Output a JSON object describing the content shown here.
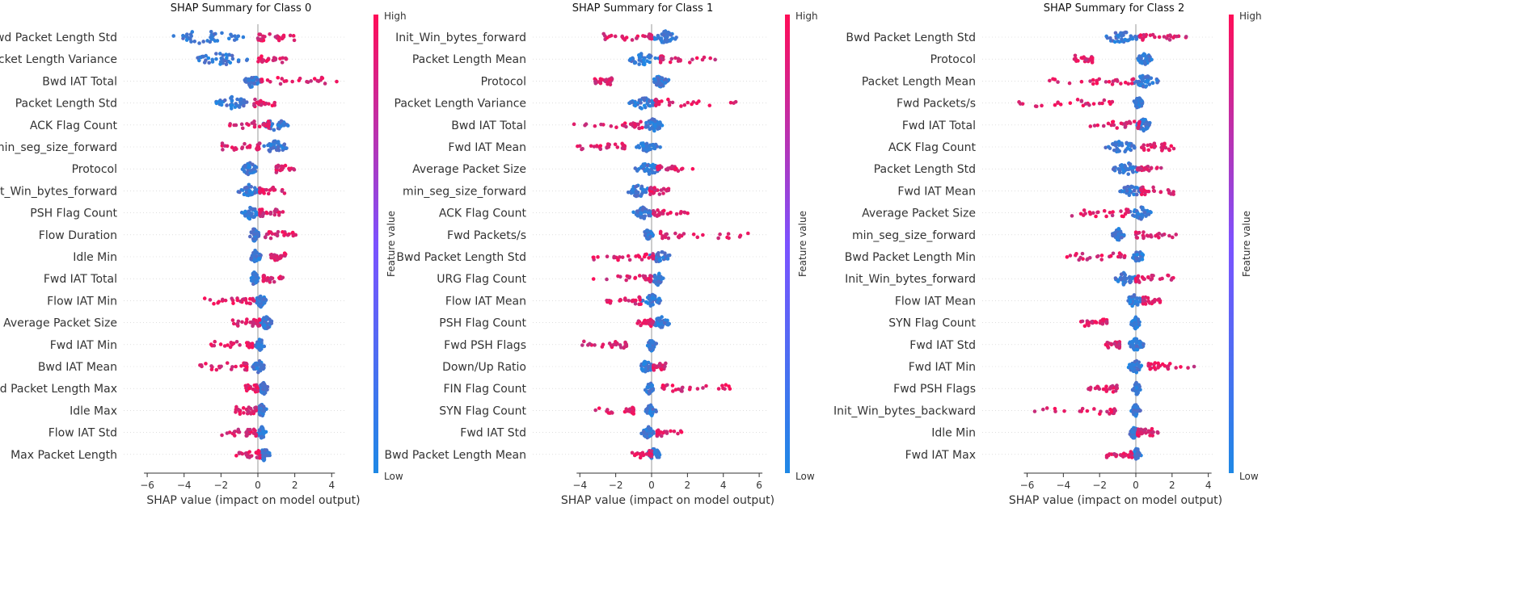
{
  "colors": {
    "low": "#1e88e5",
    "high": "#ff0d57",
    "zero_line": "#999999",
    "axis": "#333333"
  },
  "colorbar": {
    "high_label": "High",
    "low_label": "Low",
    "title": "Feature value"
  },
  "chart_data": [
    {
      "type": "scatter",
      "subtype": "shap-beeswarm",
      "title": "SHAP Summary for Class 0",
      "xlabel": "SHAP value (impact on model output)",
      "ylabel": "",
      "xlim": [
        -6.3,
        4.7
      ],
      "xticks": [
        -6,
        -4,
        -2,
        0,
        2,
        4
      ],
      "features": [
        {
          "name": "Bwd Packet Length Std",
          "pos": [
            0,
            2.3
          ],
          "neg": [
            -5.8,
            -0.2
          ]
        },
        {
          "name": "Packet Length Variance",
          "pos": [
            0,
            1.6
          ],
          "neg": [
            -3.7,
            -0.2
          ]
        },
        {
          "name": "Bwd IAT Total",
          "pos": [
            0.2,
            4.4
          ],
          "neg": [
            -0.9,
            0.2
          ]
        },
        {
          "name": "Packet Length Std",
          "pos": [
            -0.2,
            1.0
          ],
          "neg": [
            -2.4,
            -0.3
          ]
        },
        {
          "name": "ACK Flag Count",
          "pos": [
            -1.6,
            0.6
          ],
          "neg": [
            0.2,
            1.7
          ]
        },
        {
          "name": "min_seg_size_forward",
          "pos": [
            -2.0,
            0.1
          ],
          "neg": [
            0.1,
            1.8
          ]
        },
        {
          "name": "Protocol",
          "pos": [
            1.0,
            2.0
          ],
          "neg": [
            -0.9,
            0.0
          ]
        },
        {
          "name": "Init_Win_bytes_forward",
          "pos": [
            0.1,
            1.5
          ],
          "neg": [
            -1.1,
            0.1
          ]
        },
        {
          "name": "PSH Flag Count",
          "pos": [
            0.1,
            1.5
          ],
          "neg": [
            -0.9,
            0.1
          ]
        },
        {
          "name": "Flow Duration",
          "pos": [
            0.4,
            2.1
          ],
          "neg": [
            -0.5,
            0.1
          ]
        },
        {
          "name": "Idle Min",
          "pos": [
            0.7,
            1.5
          ],
          "neg": [
            -0.5,
            0.2
          ]
        },
        {
          "name": "Fwd IAT Total",
          "pos": [
            0.3,
            1.4
          ],
          "neg": [
            -0.5,
            0.1
          ]
        },
        {
          "name": "Flow IAT Min",
          "pos": [
            -2.9,
            -0.2
          ],
          "neg": [
            -0.2,
            0.5
          ]
        },
        {
          "name": "Average Packet Size",
          "pos": [
            -1.5,
            0.1
          ],
          "neg": [
            0.0,
            0.9
          ]
        },
        {
          "name": "Fwd IAT Min",
          "pos": [
            -2.9,
            -0.3
          ],
          "neg": [
            -0.2,
            0.4
          ]
        },
        {
          "name": "Bwd IAT Mean",
          "pos": [
            -3.3,
            -0.6
          ],
          "neg": [
            -0.3,
            0.4
          ]
        },
        {
          "name": "Bwd Packet Length Max",
          "pos": [
            -0.9,
            0.0
          ],
          "neg": [
            0.0,
            0.6
          ]
        },
        {
          "name": "Idle Max",
          "pos": [
            -1.3,
            -0.1
          ],
          "neg": [
            -0.1,
            0.5
          ]
        },
        {
          "name": "Flow IAT Std",
          "pos": [
            -2.0,
            -0.1
          ],
          "neg": [
            -0.1,
            0.5
          ]
        },
        {
          "name": "Max Packet Length",
          "pos": [
            -1.2,
            0.1
          ],
          "neg": [
            0.0,
            0.7
          ]
        }
      ]
    },
    {
      "type": "scatter",
      "subtype": "shap-beeswarm",
      "title": "SHAP Summary for Class 1",
      "xlabel": "SHAP value (impact on model output)",
      "ylabel": "",
      "xlim": [
        -5.5,
        6.4
      ],
      "xticks": [
        -4,
        -2,
        0,
        2,
        4,
        6
      ],
      "features": [
        {
          "name": "Init_Win_bytes_forward",
          "pos": [
            -2.7,
            0.0
          ],
          "neg": [
            0.0,
            1.5
          ]
        },
        {
          "name": "Packet Length Mean",
          "pos": [
            0.5,
            3.6
          ],
          "neg": [
            -1.5,
            0.5
          ]
        },
        {
          "name": "Protocol",
          "pos": [
            -3.3,
            -2.2
          ],
          "neg": [
            0.0,
            1.0
          ]
        },
        {
          "name": "Packet Length Variance",
          "pos": [
            0.2,
            5.0
          ],
          "neg": [
            -1.3,
            0.3
          ]
        },
        {
          "name": "Bwd IAT Total",
          "pos": [
            -4.5,
            -0.5
          ],
          "neg": [
            -0.5,
            0.7
          ]
        },
        {
          "name": "Fwd IAT Mean",
          "pos": [
            -4.2,
            -1.5
          ],
          "neg": [
            -1.0,
            0.5
          ]
        },
        {
          "name": "Average Packet Size",
          "pos": [
            0.3,
            2.3
          ],
          "neg": [
            -1.0,
            0.6
          ]
        },
        {
          "name": "min_seg_size_forward",
          "pos": [
            -0.1,
            1.0
          ],
          "neg": [
            -1.5,
            0.0
          ]
        },
        {
          "name": "ACK Flag Count",
          "pos": [
            0.1,
            2.1
          ],
          "neg": [
            -1.1,
            0.2
          ]
        },
        {
          "name": "Fwd Packets/s",
          "pos": [
            0.5,
            5.5
          ],
          "neg": [
            -0.5,
            0.1
          ]
        },
        {
          "name": "Bwd Packet Length Std",
          "pos": [
            -3.4,
            0.1
          ],
          "neg": [
            -0.2,
            1.1
          ]
        },
        {
          "name": "URG Flag Count",
          "pos": [
            -3.3,
            0.0
          ],
          "neg": [
            0.0,
            0.7
          ]
        },
        {
          "name": "Flow IAT Mean",
          "pos": [
            -2.6,
            -0.6
          ],
          "neg": [
            -0.6,
            0.6
          ]
        },
        {
          "name": "PSH Flag Count",
          "pos": [
            -0.8,
            0.1
          ],
          "neg": [
            0.0,
            1.1
          ]
        },
        {
          "name": "Fwd PSH Flags",
          "pos": [
            -4.2,
            -1.4
          ],
          "neg": [
            -0.3,
            0.3
          ]
        },
        {
          "name": "Down/Up Ratio",
          "pos": [
            0.1,
            1.0
          ],
          "neg": [
            -0.8,
            0.2
          ]
        },
        {
          "name": "FIN Flag Count",
          "pos": [
            0.6,
            4.5
          ],
          "neg": [
            -0.4,
            0.2
          ]
        },
        {
          "name": "SYN Flag Count",
          "pos": [
            -3.3,
            -1.0
          ],
          "neg": [
            -0.4,
            0.3
          ]
        },
        {
          "name": "Fwd IAT Std",
          "pos": [
            0.3,
            1.7
          ],
          "neg": [
            -0.6,
            0.2
          ]
        },
        {
          "name": "Bwd Packet Length Mean",
          "pos": [
            -1.2,
            0.0
          ],
          "neg": [
            -0.3,
            0.6
          ]
        }
      ]
    },
    {
      "type": "scatter",
      "subtype": "shap-beeswarm",
      "title": "SHAP Summary for Class 2",
      "xlabel": "SHAP value (impact on model output)",
      "ylabel": "",
      "xlim": [
        -7.0,
        4.6
      ],
      "xticks": [
        -6,
        -4,
        -2,
        0,
        2,
        4
      ],
      "features": [
        {
          "name": "Bwd Packet Length Std",
          "pos": [
            0.2,
            2.8
          ],
          "neg": [
            -2.1,
            0.3
          ]
        },
        {
          "name": "Protocol",
          "pos": [
            -3.4,
            -2.4
          ],
          "neg": [
            0.0,
            1.0
          ]
        },
        {
          "name": "Packet Length Mean",
          "pos": [
            -4.9,
            -0.1
          ],
          "neg": [
            -0.3,
            1.3
          ]
        },
        {
          "name": "Fwd Packets/s",
          "pos": [
            -6.5,
            -1.3
          ],
          "neg": [
            -0.2,
            0.5
          ]
        },
        {
          "name": "Fwd IAT Total",
          "pos": [
            -3.2,
            0.2
          ],
          "neg": [
            0.0,
            0.9
          ]
        },
        {
          "name": "ACK Flag Count",
          "pos": [
            0.3,
            2.2
          ],
          "neg": [
            -1.8,
            0.2
          ]
        },
        {
          "name": "Packet Length Std",
          "pos": [
            0.1,
            1.4
          ],
          "neg": [
            -1.3,
            0.3
          ]
        },
        {
          "name": "Fwd IAT Mean",
          "pos": [
            0.3,
            2.1
          ],
          "neg": [
            -0.9,
            0.4
          ]
        },
        {
          "name": "Average Packet Size",
          "pos": [
            -3.6,
            -0.4
          ],
          "neg": [
            -0.4,
            1.0
          ]
        },
        {
          "name": "min_seg_size_forward",
          "pos": [
            0.0,
            2.6
          ],
          "neg": [
            -1.3,
            -0.6
          ]
        },
        {
          "name": "Bwd Packet Length Min",
          "pos": [
            -3.8,
            -0.6
          ],
          "neg": [
            -0.2,
            0.5
          ]
        },
        {
          "name": "Init_Win_bytes_forward",
          "pos": [
            0.0,
            2.1
          ],
          "neg": [
            -1.3,
            0.1
          ]
        },
        {
          "name": "Flow IAT Mean",
          "pos": [
            0.4,
            1.4
          ],
          "neg": [
            -0.6,
            0.4
          ]
        },
        {
          "name": "SYN Flag Count",
          "pos": [
            -3.4,
            -1.6
          ],
          "neg": [
            -0.3,
            0.3
          ]
        },
        {
          "name": "Fwd IAT Std",
          "pos": [
            -1.9,
            -0.9
          ],
          "neg": [
            -0.5,
            0.5
          ]
        },
        {
          "name": "Fwd IAT Min",
          "pos": [
            0.7,
            3.8
          ],
          "neg": [
            -0.5,
            0.5
          ]
        },
        {
          "name": "Fwd PSH Flags",
          "pos": [
            -2.7,
            -1.0
          ],
          "neg": [
            -0.2,
            0.3
          ]
        },
        {
          "name": "Init_Win_bytes_backward",
          "pos": [
            -5.7,
            -1.1
          ],
          "neg": [
            -0.3,
            0.3
          ]
        },
        {
          "name": "Idle Min",
          "pos": [
            0.1,
            1.3
          ],
          "neg": [
            -0.4,
            0.2
          ]
        },
        {
          "name": "Fwd IAT Max",
          "pos": [
            -1.7,
            -0.2
          ],
          "neg": [
            -0.2,
            0.3
          ]
        }
      ]
    }
  ]
}
